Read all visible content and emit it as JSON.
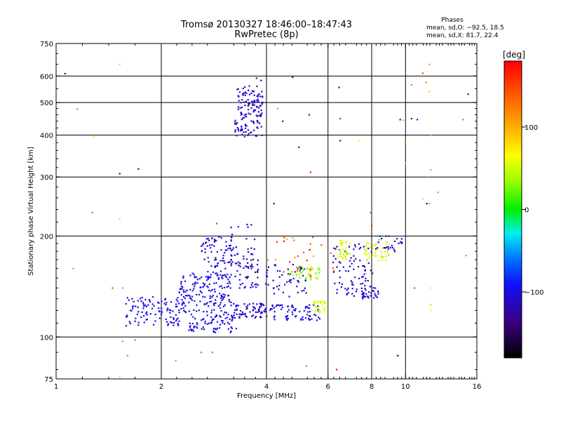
{
  "chart_data": {
    "type": "scatter",
    "title": "Tromsø 20130327 18:46:00–18:47:43",
    "subtitle": "RwPretec (8p)",
    "xlabel": "Frequency [MHz]",
    "ylabel": "Stationary phase Virtual Height [km]",
    "x_scale": "log",
    "y_scale": "log",
    "xlim": [
      1,
      16
    ],
    "ylim": [
      75,
      750
    ],
    "x_ticks": [
      1,
      2,
      4,
      6,
      8,
      10,
      16
    ],
    "x_tick_labels": [
      "1",
      "2",
      "4",
      "6",
      "8",
      "10",
      "16"
    ],
    "y_ticks": [
      75,
      100,
      200,
      300,
      400,
      500,
      600,
      750
    ],
    "y_tick_labels": [
      "75",
      "100",
      "200",
      "300",
      "400",
      "500",
      "600",
      "750"
    ],
    "x_gridlines": [
      2,
      4,
      6,
      8,
      10
    ],
    "y_gridlines": [
      100,
      200,
      300,
      400,
      500,
      600
    ],
    "grid": true,
    "phases_box": {
      "heading": "Phases",
      "line1": "mean, sd,O: −92.5, 18.5",
      "line2": "mean, sd,X:  81.7, 22.4"
    },
    "colorbar": {
      "label": "[deg]",
      "range": [
        -180,
        180
      ],
      "ticks": [
        100,
        0,
        -100
      ],
      "tick_labels": [
        "100",
        "0",
        "−100"
      ]
    },
    "points": [
      {
        "x": 1.06,
        "y": 610,
        "phase": -110
      },
      {
        "x": 1.15,
        "y": 478,
        "phase": 130
      },
      {
        "x": 1.28,
        "y": 395,
        "phase": 60
      },
      {
        "x": 1.27,
        "y": 235,
        "phase": 130
      },
      {
        "x": 1.12,
        "y": 160,
        "phase": 110
      },
      {
        "x": 1.52,
        "y": 650,
        "phase": 40
      },
      {
        "x": 1.52,
        "y": 307,
        "phase": -110
      },
      {
        "x": 1.72,
        "y": 317,
        "phase": -110
      },
      {
        "x": 1.52,
        "y": 225,
        "phase": 40
      },
      {
        "x": 1.45,
        "y": 140,
        "phase": 150
      },
      {
        "x": 1.55,
        "y": 140,
        "phase": -20
      },
      {
        "x": 1.55,
        "y": 97,
        "phase": 120
      },
      {
        "x": 1.6,
        "y": 88,
        "phase": 130
      },
      {
        "x": 1.68,
        "y": 98,
        "phase": 140
      },
      {
        "x": 1.52,
        "y": 76,
        "phase": 80
      },
      {
        "x": 2.2,
        "y": 85,
        "phase": 110
      },
      {
        "x": 2.6,
        "y": 90,
        "phase": 130
      },
      {
        "x": 2.8,
        "y": 90,
        "phase": 140
      },
      {
        "x": 2.88,
        "y": 218,
        "phase": 160
      },
      {
        "x": 5.2,
        "y": 82,
        "phase": 130
      },
      {
        "x": 4.2,
        "y": 250,
        "phase": -110
      },
      {
        "x": 4.3,
        "y": 480,
        "phase": 10
      },
      {
        "x": 4.45,
        "y": 440,
        "phase": -110
      },
      {
        "x": 4.75,
        "y": 595,
        "phase": -110
      },
      {
        "x": 4.95,
        "y": 368,
        "phase": -110
      },
      {
        "x": 5.35,
        "y": 310,
        "phase": 170
      },
      {
        "x": 5.3,
        "y": 460,
        "phase": -110
      },
      {
        "x": 6.35,
        "y": 80,
        "phase": 170
      },
      {
        "x": 6.45,
        "y": 555,
        "phase": -110
      },
      {
        "x": 6.5,
        "y": 448,
        "phase": 170
      },
      {
        "x": 6.5,
        "y": 385,
        "phase": -110
      },
      {
        "x": 7.35,
        "y": 385,
        "phase": 60
      },
      {
        "x": 7.95,
        "y": 235,
        "phase": 150
      },
      {
        "x": 9.5,
        "y": 88,
        "phase": -150
      },
      {
        "x": 9.65,
        "y": 445,
        "phase": -110
      },
      {
        "x": 9.85,
        "y": 443,
        "phase": 90
      },
      {
        "x": 9.95,
        "y": 382,
        "phase": 90
      },
      {
        "x": 10.0,
        "y": 330,
        "phase": 100
      },
      {
        "x": 10.4,
        "y": 565,
        "phase": 130
      },
      {
        "x": 10.4,
        "y": 448,
        "phase": -110
      },
      {
        "x": 10.8,
        "y": 445,
        "phase": -110
      },
      {
        "x": 11.2,
        "y": 612,
        "phase": 150
      },
      {
        "x": 11.45,
        "y": 575,
        "phase": 130
      },
      {
        "x": 11.7,
        "y": 650,
        "phase": 110
      },
      {
        "x": 11.7,
        "y": 540,
        "phase": 90
      },
      {
        "x": 11.8,
        "y": 400,
        "phase": 110
      },
      {
        "x": 11.8,
        "y": 315,
        "phase": 110
      },
      {
        "x": 11.6,
        "y": 300,
        "phase": 120
      },
      {
        "x": 11.2,
        "y": 258,
        "phase": 80
      },
      {
        "x": 11.5,
        "y": 250,
        "phase": -110
      },
      {
        "x": 11.7,
        "y": 250,
        "phase": 20
      },
      {
        "x": 12.4,
        "y": 270,
        "phase": 110
      },
      {
        "x": 10.6,
        "y": 140,
        "phase": 150
      },
      {
        "x": 11.8,
        "y": 140,
        "phase": 60
      },
      {
        "x": 11.8,
        "y": 125,
        "phase": 40
      },
      {
        "x": 11.8,
        "y": 120,
        "phase": 60
      },
      {
        "x": 15.1,
        "y": 530,
        "phase": -110
      },
      {
        "x": 14.6,
        "y": 445,
        "phase": 130
      },
      {
        "x": 14.9,
        "y": 175,
        "phase": 10
      },
      {
        "x": 8.0,
        "y": 215,
        "phase": 170
      },
      {
        "x": 8.4,
        "y": 195,
        "phase": 10
      }
    ],
    "clusters": [
      {
        "x_range": [
          3.25,
          3.9
        ],
        "y_range": [
          395,
          560
        ],
        "n": 130,
        "phase_range": [
          -130,
          -90
        ]
      },
      {
        "x_range": [
          3.3,
          3.9
        ],
        "y_range": [
          480,
          610
        ],
        "n": 15,
        "phase_range": [
          -130,
          -90
        ]
      },
      {
        "x_range": [
          1.58,
          2.3
        ],
        "y_range": [
          108,
          132
        ],
        "n": 110,
        "phase_range": [
          -115,
          -85
        ]
      },
      {
        "x_range": [
          2.25,
          3.2
        ],
        "y_range": [
          118,
          155
        ],
        "n": 160,
        "phase_range": [
          -115,
          -85
        ]
      },
      {
        "x_range": [
          2.6,
          3.3
        ],
        "y_range": [
          150,
          200
        ],
        "n": 90,
        "phase_range": [
          -120,
          -85
        ]
      },
      {
        "x_range": [
          3.1,
          3.7
        ],
        "y_range": [
          160,
          220
        ],
        "n": 30,
        "phase_range": [
          -125,
          -95
        ]
      },
      {
        "x_range": [
          3.3,
          3.8
        ],
        "y_range": [
          140,
          172
        ],
        "n": 45,
        "phase_range": [
          -125,
          -95
        ]
      },
      {
        "x_range": [
          2.4,
          3.3
        ],
        "y_range": [
          103,
          117
        ],
        "n": 75,
        "phase_range": [
          -115,
          -85
        ]
      },
      {
        "x_range": [
          3.2,
          4.1
        ],
        "y_range": [
          114,
          126
        ],
        "n": 70,
        "phase_range": [
          -130,
          -95
        ]
      },
      {
        "x_range": [
          4.1,
          5.7
        ],
        "y_range": [
          112,
          125
        ],
        "n": 70,
        "phase_range": [
          -115,
          -85
        ]
      },
      {
        "x_range": [
          3.9,
          5.2
        ],
        "y_range": [
          132,
          165
        ],
        "n": 55,
        "phase_range": [
          -120,
          -90
        ]
      },
      {
        "x_range": [
          4.6,
          5.7
        ],
        "y_range": [
          148,
          162
        ],
        "n": 40,
        "phase_range": [
          15,
          55
        ]
      },
      {
        "x_range": [
          5.4,
          5.9
        ],
        "y_range": [
          118,
          128
        ],
        "n": 30,
        "phase_range": [
          40,
          85
        ]
      },
      {
        "x_range": [
          4.0,
          6.3
        ],
        "y_range": [
          150,
          200
        ],
        "n": 30,
        "phase_range": [
          100,
          175
        ]
      },
      {
        "x_range": [
          6.2,
          8.1
        ],
        "y_range": [
          130,
          190
        ],
        "n": 90,
        "phase_range": [
          -125,
          -95
        ]
      },
      {
        "x_range": [
          6.4,
          7.0
        ],
        "y_range": [
          170,
          195
        ],
        "n": 35,
        "phase_range": [
          30,
          80
        ]
      },
      {
        "x_range": [
          7.6,
          9.0
        ],
        "y_range": [
          168,
          192
        ],
        "n": 45,
        "phase_range": [
          30,
          85
        ]
      },
      {
        "x_range": [
          7.4,
          8.4
        ],
        "y_range": [
          130,
          140
        ],
        "n": 25,
        "phase_range": [
          -120,
          -95
        ]
      },
      {
        "x_range": [
          8.1,
          9.8
        ],
        "y_range": [
          180,
          200
        ],
        "n": 25,
        "phase_range": [
          -125,
          -95
        ]
      }
    ]
  }
}
